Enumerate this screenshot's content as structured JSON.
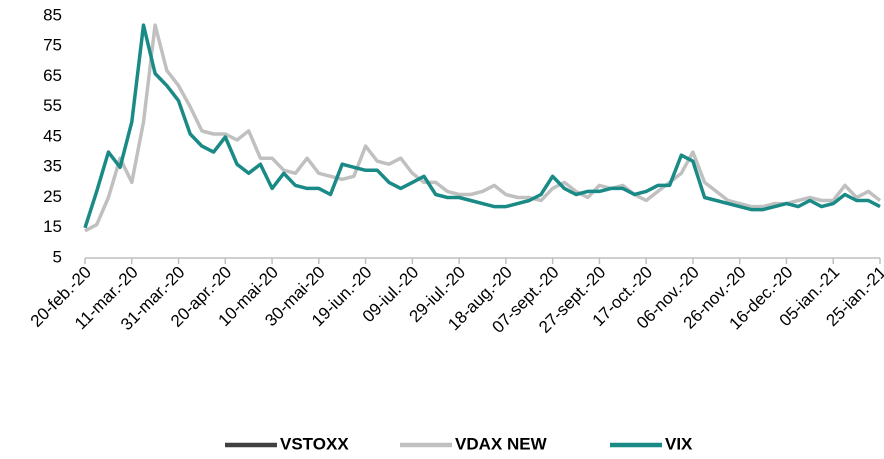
{
  "chart_data": {
    "type": "line",
    "categories": [
      "20-feb.-20",
      null,
      null,
      null,
      "11-mar.-20",
      null,
      null,
      null,
      "31-mar.-20",
      null,
      null,
      null,
      "20-apr.-20",
      null,
      null,
      null,
      "10-mai-20",
      null,
      null,
      null,
      "30-mai-20",
      null,
      null,
      null,
      "19-iun.-20",
      null,
      null,
      null,
      "09-iul.-20",
      null,
      null,
      null,
      "29-iul.-20",
      null,
      null,
      null,
      "18-aug.-20",
      null,
      null,
      null,
      "07-sept.-20",
      null,
      null,
      null,
      "27-sept.-20",
      null,
      null,
      null,
      "17-oct.-20",
      null,
      null,
      null,
      "06-nov.-20",
      null,
      null,
      null,
      "26-nov.-20",
      null,
      null,
      null,
      "16-dec.-20",
      null,
      null,
      null,
      "05-ian.-21",
      null,
      null,
      null,
      "25-ian.-21"
    ],
    "series": [
      {
        "name": "VSTOXX",
        "color": "#404040",
        "values": [
          null,
          null,
          null,
          null,
          null,
          null,
          null,
          null,
          null,
          null,
          null,
          null,
          null,
          null,
          null,
          null,
          null,
          null,
          null,
          null,
          null,
          null,
          null,
          null,
          null,
          null,
          null,
          null,
          null,
          null,
          null,
          null,
          null,
          null,
          null,
          null,
          null,
          null,
          null,
          null,
          null,
          null,
          null,
          null,
          null,
          null,
          null,
          null,
          null,
          null,
          null,
          null,
          null,
          null,
          null,
          null,
          null,
          null,
          null,
          null,
          null,
          null,
          null,
          null,
          null,
          null,
          null,
          null,
          null
        ]
      },
      {
        "name": "VDAX NEW",
        "color": "#c0c0c0",
        "values": [
          14,
          16,
          25,
          38,
          30,
          50,
          82,
          67,
          62,
          55,
          47,
          46,
          46,
          44,
          47,
          38,
          38,
          34,
          33,
          38,
          33,
          32,
          31,
          32,
          42,
          37,
          36,
          38,
          33,
          30,
          30,
          27,
          26,
          26,
          27,
          29,
          26,
          25,
          25,
          24,
          28,
          30,
          27,
          25,
          29,
          28,
          29,
          26,
          24,
          27,
          30,
          33,
          40,
          30,
          27,
          24,
          23,
          22,
          22,
          23,
          23,
          24,
          25,
          24,
          24,
          29,
          25,
          27,
          24
        ]
      },
      {
        "name": "VIX",
        "color": "#1a8a86",
        "values": [
          15,
          27,
          40,
          35,
          50,
          82,
          66,
          62,
          57,
          46,
          42,
          40,
          45,
          36,
          33,
          36,
          28,
          33,
          29,
          28,
          28,
          26,
          36,
          35,
          34,
          34,
          30,
          28,
          30,
          32,
          26,
          25,
          25,
          24,
          23,
          22,
          22,
          23,
          24,
          26,
          32,
          28,
          26,
          27,
          27,
          28,
          28,
          26,
          27,
          29,
          29,
          39,
          37,
          25,
          24,
          23,
          22,
          21,
          21,
          22,
          23,
          22,
          24,
          22,
          23,
          26,
          24,
          24,
          22
        ]
      }
    ],
    "ylim": [
      5,
      85
    ],
    "yticks": [
      5,
      15,
      25,
      35,
      45,
      55,
      65,
      75,
      85
    ],
    "grid": false
  }
}
